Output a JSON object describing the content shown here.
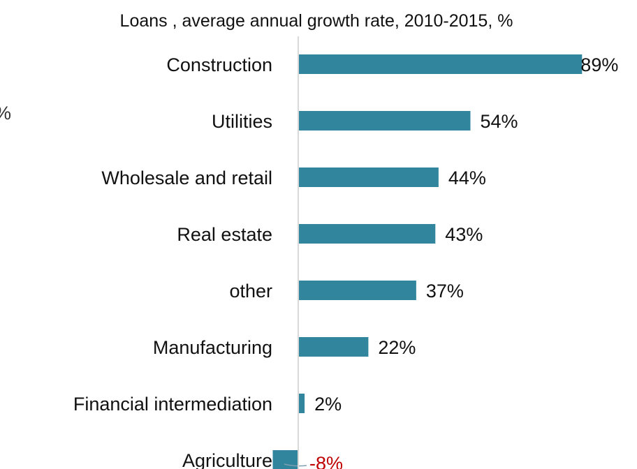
{
  "chart_data": {
    "type": "bar",
    "orientation": "horizontal",
    "title": "Loans , average annual growth rate, 2010-2015, %",
    "xlabel": "",
    "ylabel": "",
    "categories": [
      "Construction",
      "Utilities",
      "Wholesale and retail",
      "Real estate",
      "other",
      "Manufacturing",
      "Financial intermediation",
      "Agriculture"
    ],
    "values": [
      89,
      54,
      44,
      43,
      37,
      22,
      2,
      -8
    ],
    "value_labels": [
      "89%",
      "54%",
      "44%",
      "43%",
      "37%",
      "22%",
      "2%",
      "-8%"
    ],
    "xlim": [
      -10,
      90
    ],
    "grid": false,
    "legend": "none",
    "colors": {
      "bar": "#31859c",
      "axis": "#d9d9d9",
      "text": "#111111",
      "negative_label": "#c00000",
      "leader_line": "#7f9fb0"
    }
  },
  "edge_fragment": "%"
}
